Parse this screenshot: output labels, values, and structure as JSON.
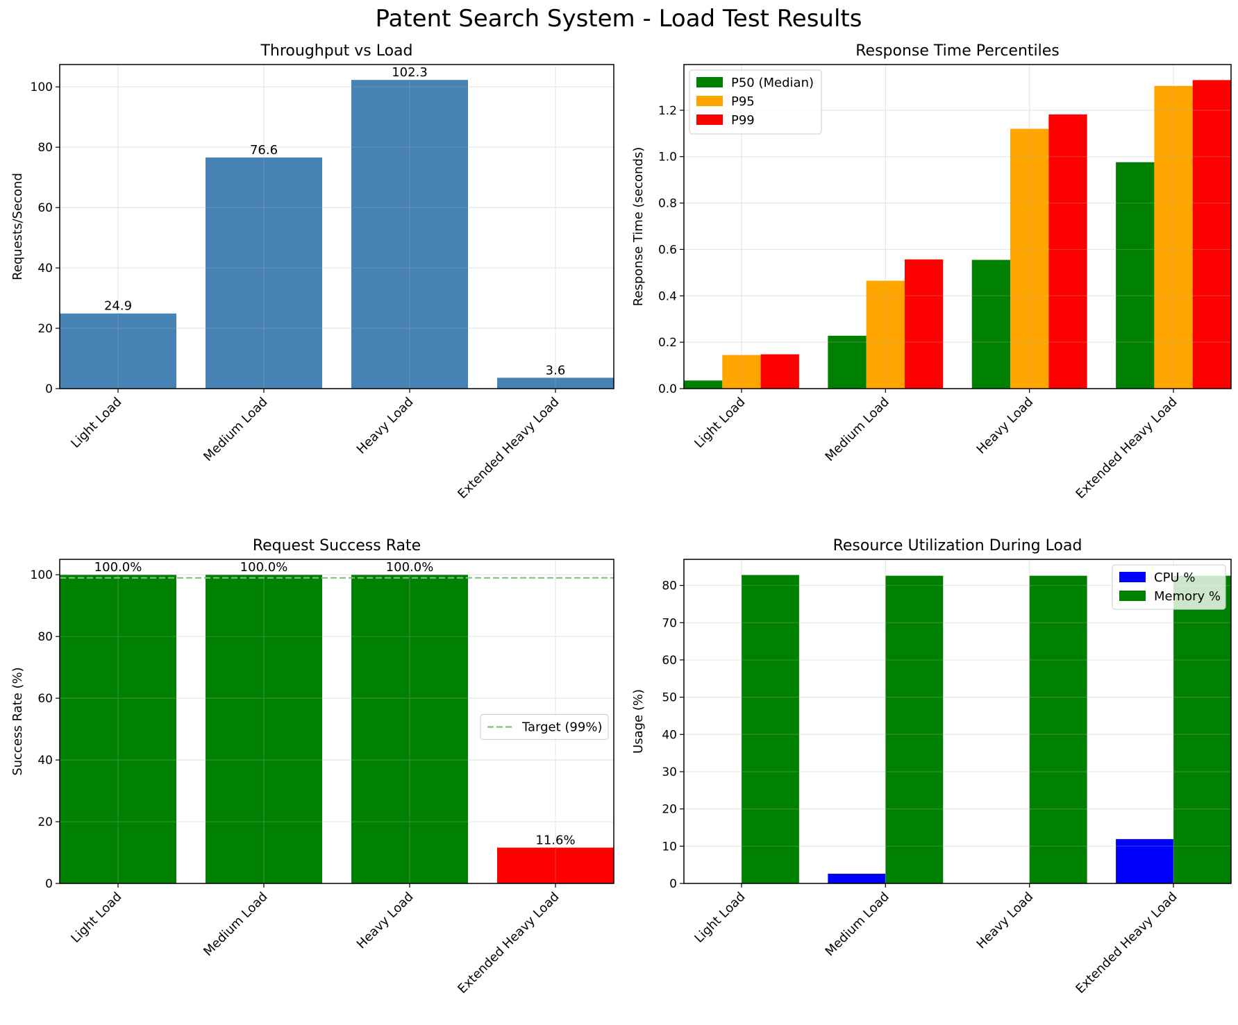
{
  "title": "Patent Search System - Load Test Results",
  "chart_data": [
    {
      "type": "bar",
      "title": "Throughput vs Load",
      "xlabel": "",
      "ylabel": "Requests/Second",
      "categories": [
        "Light Load",
        "Medium Load",
        "Heavy Load",
        "Extended Heavy Load"
      ],
      "values": [
        24.9,
        76.6,
        102.3,
        3.6
      ],
      "value_labels": [
        "24.9",
        "76.6",
        "102.3",
        "3.6"
      ],
      "ylim": [
        0,
        107.4
      ],
      "yticks": [
        0,
        20,
        40,
        60,
        80,
        100
      ],
      "ytick_labels": [
        "0",
        "20",
        "40",
        "60",
        "80",
        "100"
      ],
      "color": "#4682b4",
      "grid": true
    },
    {
      "type": "bar",
      "title": "Response Time Percentiles",
      "xlabel": "",
      "ylabel": "Response Time (seconds)",
      "categories": [
        "Light Load",
        "Medium Load",
        "Heavy Load",
        "Extended Heavy Load"
      ],
      "series": [
        {
          "name": "P50 (Median)",
          "values": [
            0.035,
            0.228,
            0.555,
            0.976
          ],
          "color": "#008000"
        },
        {
          "name": "P95",
          "values": [
            0.145,
            0.465,
            1.12,
            1.305
          ],
          "color": "#ffa500"
        },
        {
          "name": "P99",
          "values": [
            0.148,
            0.557,
            1.182,
            1.33
          ],
          "color": "#ff0000"
        }
      ],
      "ylim": [
        0,
        1.397
      ],
      "yticks": [
        0,
        0.2,
        0.4,
        0.6,
        0.8,
        1.0,
        1.2
      ],
      "ytick_labels": [
        "0.0",
        "0.2",
        "0.4",
        "0.6",
        "0.8",
        "1.0",
        "1.2"
      ],
      "legend": "top-left",
      "grid": true
    },
    {
      "type": "bar",
      "title": "Request Success Rate",
      "xlabel": "",
      "ylabel": "Success Rate (%)",
      "categories": [
        "Light Load",
        "Medium Load",
        "Heavy Load",
        "Extended Heavy Load"
      ],
      "values": [
        100.0,
        100.0,
        100.0,
        11.6
      ],
      "value_labels": [
        "100.0%",
        "100.0%",
        "100.0%",
        "11.6%"
      ],
      "colors": [
        "#008000",
        "#008000",
        "#008000",
        "#ff0000"
      ],
      "reference_line": {
        "label": "Target (99%)",
        "value": 99,
        "color": "#7fbf7f"
      },
      "ylim": [
        0,
        105
      ],
      "yticks": [
        0,
        20,
        40,
        60,
        80,
        100
      ],
      "ytick_labels": [
        "0",
        "20",
        "40",
        "60",
        "80",
        "100"
      ],
      "legend": "center-right",
      "grid": true
    },
    {
      "type": "bar",
      "title": "Resource Utilization During Load",
      "xlabel": "",
      "ylabel": "Usage (%)",
      "categories": [
        "Light Load",
        "Medium Load",
        "Heavy Load",
        "Extended Heavy Load"
      ],
      "series": [
        {
          "name": "CPU %",
          "values": [
            0,
            2.6,
            0,
            11.9
          ],
          "color": "#0000ff"
        },
        {
          "name": "Memory %",
          "values": [
            82.8,
            82.6,
            82.6,
            82.6
          ],
          "color": "#008000"
        }
      ],
      "ylim": [
        0,
        87
      ],
      "yticks": [
        0,
        10,
        20,
        30,
        40,
        50,
        60,
        70,
        80
      ],
      "ytick_labels": [
        "0",
        "10",
        "20",
        "30",
        "40",
        "50",
        "60",
        "70",
        "80"
      ],
      "legend": "top-right",
      "grid": true
    }
  ]
}
